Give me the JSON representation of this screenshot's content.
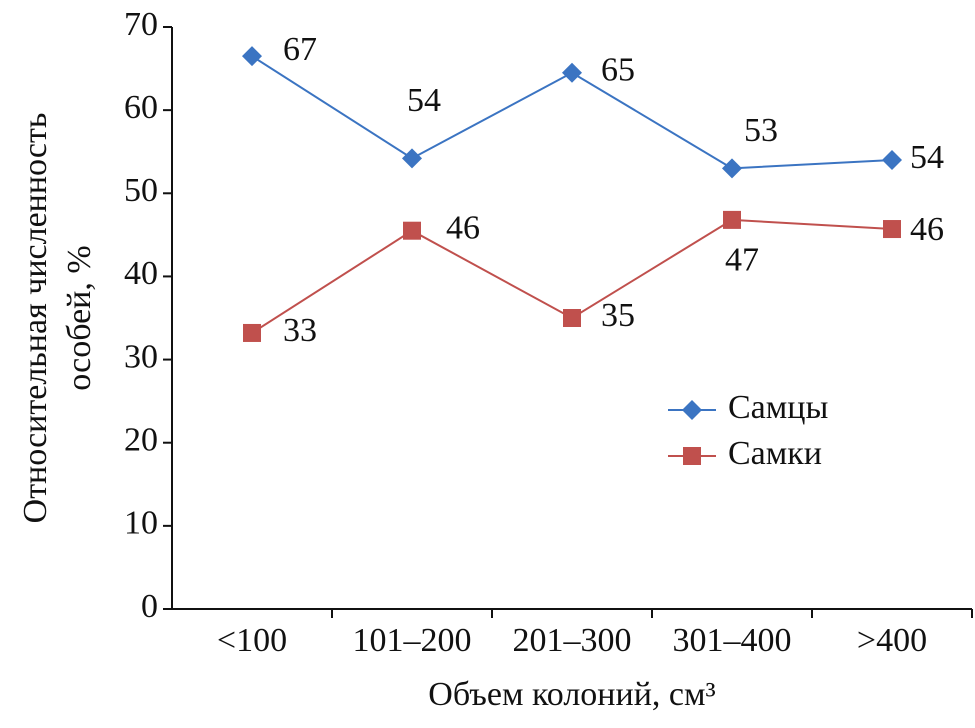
{
  "chart_data": {
    "type": "line",
    "y_label": [
      "Относительная численность",
      "особей, %"
    ],
    "x_label": "Объем колоний, см³",
    "categories": [
      "<100",
      "101–200",
      "201–300",
      "301–400",
      ">400"
    ],
    "series": [
      {
        "name": "Самцы",
        "color": "#3b74c2",
        "marker": "diamond",
        "values": [
          66.5,
          54.2,
          64.5,
          53.0,
          54.0
        ],
        "value_labels": [
          "67",
          "54",
          "65",
          "53",
          "54"
        ]
      },
      {
        "name": "Самки",
        "color": "#c0504d",
        "marker": "square",
        "values": [
          33.2,
          45.5,
          35.0,
          46.8,
          45.7
        ],
        "value_labels": [
          "33",
          "46",
          "35",
          "47",
          "46"
        ]
      }
    ],
    "ylim": [
      0,
      70
    ],
    "yticks": [
      0,
      10,
      20,
      30,
      40,
      50,
      60,
      70
    ],
    "grid": false,
    "legend": "right"
  }
}
